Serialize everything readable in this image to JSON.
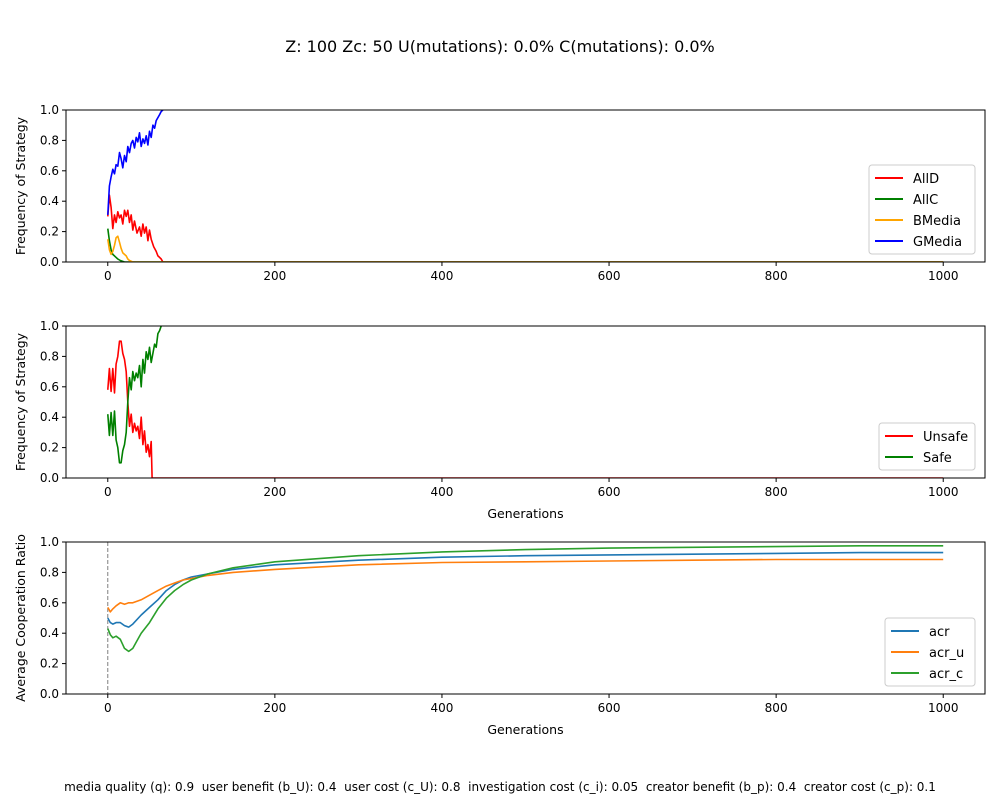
{
  "title": "Z: 100  Zc: 50  U(mutations): 0.0%  C(mutations): 0.0%",
  "footer": "media quality (q): 0.9  user benefit (b_U): 0.4  user cost (c_U): 0.8  investigation cost (c_i): 0.05  creator benefit (b_p): 0.4  creator cost (c_p): 0.1",
  "chart_data": [
    {
      "type": "line",
      "title": "",
      "xlabel": "",
      "ylabel": "Frequency of Strategy",
      "xlim": [
        -50,
        1050
      ],
      "ylim": [
        0,
        1
      ],
      "xticks": [
        0,
        200,
        400,
        600,
        800,
        1000
      ],
      "yticks": [
        0.0,
        0.2,
        0.4,
        0.6,
        0.8,
        1.0
      ],
      "legend_position": "lower-right",
      "series": [
        {
          "name": "AllD",
          "color": "#ff0000",
          "x": [
            0,
            2,
            4,
            6,
            8,
            10,
            12,
            14,
            16,
            18,
            20,
            22,
            24,
            26,
            28,
            30,
            32,
            35,
            38,
            40,
            42,
            44,
            46,
            48,
            50,
            52,
            55,
            58,
            60,
            62,
            64,
            66,
            70,
            100,
            200,
            400,
            600,
            800,
            1000
          ],
          "y": [
            0.3,
            0.44,
            0.36,
            0.22,
            0.31,
            0.26,
            0.33,
            0.29,
            0.31,
            0.25,
            0.34,
            0.3,
            0.34,
            0.26,
            0.31,
            0.21,
            0.27,
            0.19,
            0.23,
            0.17,
            0.25,
            0.19,
            0.23,
            0.14,
            0.21,
            0.15,
            0.1,
            0.07,
            0.04,
            0.03,
            0.02,
            0.0,
            0.0,
            0.0,
            0.0,
            0.0,
            0.0,
            0.0,
            0.0
          ]
        },
        {
          "name": "AllC",
          "color": "#008000",
          "x": [
            0,
            2,
            4,
            6,
            8,
            10,
            12,
            15,
            20,
            30,
            100,
            200,
            400,
            600,
            800,
            1000
          ],
          "y": [
            0.22,
            0.14,
            0.08,
            0.05,
            0.04,
            0.03,
            0.02,
            0.01,
            0.0,
            0.0,
            0.0,
            0.0,
            0.0,
            0.0,
            0.0,
            0.0
          ],
          "note": ""
        },
        {
          "name": "BMedia",
          "color": "#ffa500",
          "x": [
            0,
            2,
            4,
            6,
            8,
            10,
            12,
            14,
            16,
            18,
            20,
            22,
            24,
            26,
            30,
            100,
            200,
            400,
            600,
            800,
            1000
          ],
          "y": [
            0.15,
            0.08,
            0.05,
            0.07,
            0.11,
            0.16,
            0.17,
            0.13,
            0.09,
            0.06,
            0.05,
            0.04,
            0.02,
            0.01,
            0.0,
            0.0,
            0.0,
            0.0,
            0.0,
            0.0,
            0.0
          ]
        },
        {
          "name": "GMedia",
          "color": "#0000ff",
          "x": [
            0,
            2,
            4,
            6,
            8,
            10,
            12,
            14,
            16,
            18,
            20,
            22,
            24,
            26,
            28,
            30,
            32,
            34,
            36,
            38,
            40,
            42,
            44,
            46,
            48,
            50,
            52,
            54,
            56,
            58,
            60,
            62,
            64,
            66
          ],
          "y": [
            0.31,
            0.5,
            0.56,
            0.61,
            0.58,
            0.64,
            0.63,
            0.72,
            0.68,
            0.62,
            0.7,
            0.66,
            0.76,
            0.72,
            0.78,
            0.8,
            0.75,
            0.82,
            0.79,
            0.85,
            0.76,
            0.81,
            0.78,
            0.83,
            0.77,
            0.86,
            0.82,
            0.9,
            0.88,
            0.93,
            0.95,
            0.97,
            0.99,
            1.0
          ]
        }
      ]
    },
    {
      "type": "line",
      "title": "",
      "xlabel": "Generations",
      "ylabel": "Frequency of Strategy",
      "xlim": [
        -50,
        1050
      ],
      "ylim": [
        0,
        1
      ],
      "xticks": [
        0,
        200,
        400,
        600,
        800,
        1000
      ],
      "yticks": [
        0.0,
        0.2,
        0.4,
        0.6,
        0.8,
        1.0
      ],
      "legend_position": "lower-right",
      "series": [
        {
          "name": "Unsafe",
          "color": "#ff0000",
          "x": [
            0,
            2,
            4,
            6,
            8,
            10,
            12,
            14,
            16,
            18,
            20,
            22,
            24,
            26,
            28,
            30,
            32,
            34,
            36,
            38,
            40,
            42,
            44,
            46,
            48,
            50,
            52,
            53,
            60,
            100,
            200,
            400,
            600,
            800,
            1000
          ],
          "y": [
            0.58,
            0.72,
            0.57,
            0.72,
            0.56,
            0.75,
            0.8,
            0.9,
            0.9,
            0.82,
            0.78,
            0.7,
            0.5,
            0.34,
            0.42,
            0.3,
            0.36,
            0.31,
            0.34,
            0.26,
            0.4,
            0.22,
            0.31,
            0.17,
            0.22,
            0.14,
            0.24,
            0.0,
            0.0,
            0.0,
            0.0,
            0.0,
            0.0,
            0.0,
            0.0
          ]
        },
        {
          "name": "Safe",
          "color": "#008000",
          "x": [
            0,
            2,
            4,
            6,
            8,
            10,
            12,
            14,
            16,
            18,
            20,
            22,
            24,
            26,
            28,
            30,
            32,
            34,
            36,
            38,
            40,
            42,
            44,
            46,
            48,
            50,
            52,
            54,
            56,
            58,
            60,
            62,
            64
          ],
          "y": [
            0.42,
            0.28,
            0.43,
            0.28,
            0.44,
            0.25,
            0.2,
            0.1,
            0.1,
            0.18,
            0.22,
            0.3,
            0.5,
            0.66,
            0.58,
            0.7,
            0.64,
            0.69,
            0.66,
            0.74,
            0.6,
            0.78,
            0.69,
            0.83,
            0.78,
            0.86,
            0.76,
            0.82,
            0.88,
            0.86,
            0.95,
            0.97,
            1.0
          ]
        }
      ]
    },
    {
      "type": "line",
      "title": "",
      "xlabel": "Generations",
      "ylabel": "Average Cooperation Ratio",
      "xlim": [
        -50,
        1050
      ],
      "ylim": [
        0,
        1
      ],
      "xticks": [
        0,
        200,
        400,
        600,
        800,
        1000
      ],
      "yticks": [
        0.0,
        0.2,
        0.4,
        0.6,
        0.8,
        1.0
      ],
      "vline_x": 0,
      "legend_position": "lower-right",
      "series": [
        {
          "name": "acr",
          "color": "#1f77b4",
          "x": [
            0,
            3,
            6,
            10,
            15,
            20,
            25,
            30,
            40,
            50,
            60,
            70,
            80,
            90,
            100,
            120,
            150,
            200,
            300,
            400,
            500,
            600,
            700,
            800,
            900,
            1000
          ],
          "y": [
            0.5,
            0.47,
            0.46,
            0.47,
            0.47,
            0.45,
            0.44,
            0.46,
            0.52,
            0.57,
            0.62,
            0.68,
            0.72,
            0.75,
            0.77,
            0.79,
            0.82,
            0.85,
            0.88,
            0.9,
            0.91,
            0.915,
            0.92,
            0.925,
            0.93,
            0.93
          ]
        },
        {
          "name": "acr_u",
          "color": "#ff7f0e",
          "x": [
            0,
            3,
            6,
            10,
            15,
            20,
            25,
            30,
            40,
            50,
            60,
            70,
            80,
            90,
            100,
            120,
            150,
            200,
            300,
            400,
            500,
            600,
            700,
            800,
            900,
            1000
          ],
          "y": [
            0.57,
            0.54,
            0.56,
            0.58,
            0.6,
            0.59,
            0.6,
            0.6,
            0.62,
            0.65,
            0.68,
            0.71,
            0.73,
            0.75,
            0.76,
            0.78,
            0.8,
            0.82,
            0.85,
            0.865,
            0.87,
            0.875,
            0.88,
            0.885,
            0.885,
            0.885
          ]
        },
        {
          "name": "acr_c",
          "color": "#2ca02c",
          "x": [
            0,
            3,
            6,
            10,
            15,
            20,
            25,
            30,
            35,
            40,
            50,
            60,
            70,
            80,
            90,
            100,
            120,
            150,
            200,
            300,
            400,
            500,
            600,
            700,
            800,
            900,
            1000
          ],
          "y": [
            0.43,
            0.39,
            0.37,
            0.38,
            0.36,
            0.3,
            0.28,
            0.3,
            0.35,
            0.4,
            0.47,
            0.56,
            0.63,
            0.68,
            0.72,
            0.75,
            0.79,
            0.83,
            0.87,
            0.91,
            0.935,
            0.95,
            0.96,
            0.965,
            0.97,
            0.975,
            0.975
          ]
        }
      ]
    }
  ]
}
